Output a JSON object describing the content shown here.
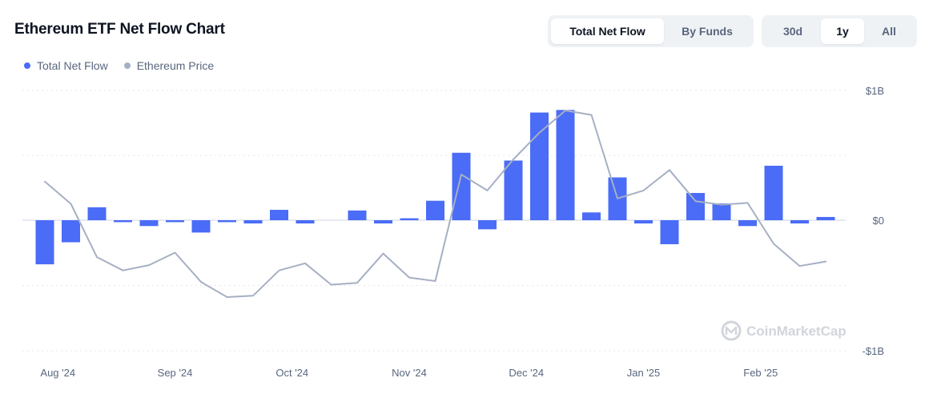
{
  "header": {
    "title": "Ethereum ETF Net Flow Chart",
    "view_tabs": [
      {
        "label": "Total Net Flow",
        "active": true
      },
      {
        "label": "By Funds",
        "active": false
      }
    ],
    "range_tabs": [
      {
        "label": "30d",
        "active": false
      },
      {
        "label": "1y",
        "active": true
      },
      {
        "label": "All",
        "active": false
      }
    ]
  },
  "legend": [
    {
      "label": "Total Net Flow",
      "color": "#4a6cf7"
    },
    {
      "label": "Ethereum Price",
      "color": "#a6b0c3"
    }
  ],
  "watermark": {
    "text": "CoinMarketCap",
    "icon": "coinmarketcap-logo-icon"
  },
  "colors": {
    "bar": "#4a6cf7",
    "price_line": "#a6b0c3",
    "grid": "#e5e7eb",
    "zero_line": "#cfd6e4"
  },
  "chart_data": {
    "type": "bar",
    "title": "Ethereum ETF Net Flow Chart",
    "xlabel": "",
    "ylabel": "",
    "x_tick_labels": [
      "Aug '24",
      "Sep '24",
      "Oct '24",
      "Nov '24",
      "Dec '24",
      "Jan '25",
      "Feb '25"
    ],
    "y_tick_labels": [
      "$1B",
      "$0",
      "-$1B"
    ],
    "ylim": [
      -1000,
      1000
    ],
    "y_unit": "USD millions",
    "grid": true,
    "legend_position": "top-left",
    "x_tick_after_bar": [
      0.5,
      5,
      9.5,
      14,
      18.5,
      23,
      27.5
    ],
    "series": [
      {
        "name": "Total Net Flow",
        "type": "bar",
        "values": [
          -340,
          -170,
          100,
          -15,
          -45,
          -15,
          -95,
          -15,
          -25,
          80,
          -25,
          0,
          75,
          -25,
          15,
          150,
          520,
          -70,
          460,
          830,
          850,
          60,
          330,
          -25,
          -185,
          210,
          130,
          -45,
          420,
          -25,
          25
        ]
      },
      {
        "name": "Ethereum Price",
        "type": "line",
        "axis": "hidden",
        "values": [
          3400,
          3150,
          2550,
          2400,
          2460,
          2600,
          2270,
          2100,
          2115,
          2400,
          2480,
          2240,
          2260,
          2590,
          2320,
          2280,
          3480,
          3300,
          3650,
          3950,
          4200,
          4150,
          3210,
          3300,
          3530,
          3180,
          3140,
          3160,
          2700,
          2450,
          2500
        ]
      }
    ]
  }
}
